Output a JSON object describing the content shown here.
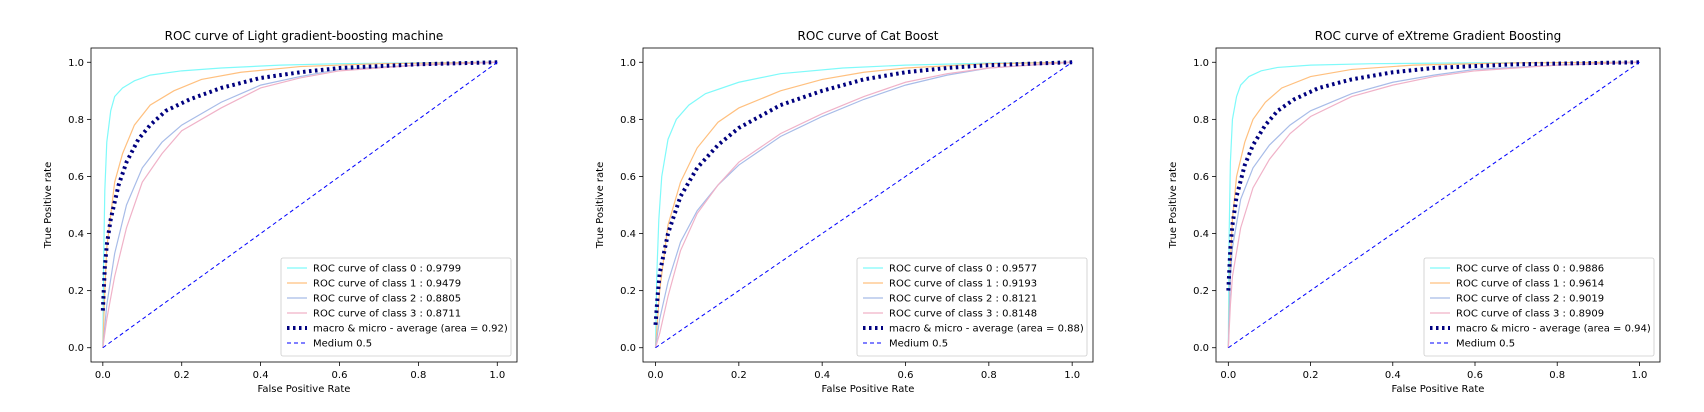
{
  "figure": {
    "background": "#ffffff"
  },
  "chart_data": [
    {
      "type": "line",
      "title": "ROC curve of Light gradient-boosting machine",
      "xlabel": "False Positive Rate",
      "ylabel": "True Positive rate",
      "xlim": [
        -0.03,
        1.05
      ],
      "ylim": [
        -0.05,
        1.05
      ],
      "xticks": [
        "0.0",
        "0.2",
        "0.4",
        "0.6",
        "0.8",
        "1.0"
      ],
      "yticks": [
        "0.0",
        "0.2",
        "0.4",
        "0.6",
        "0.8",
        "1.0"
      ],
      "legend_position": "lower-right",
      "grid": false,
      "series": [
        {
          "name": "ROC curve of class 0 : 0.9799",
          "color": "#7ffafa",
          "style": "solid",
          "points": [
            [
              0,
              0
            ],
            [
              0.002,
              0.3
            ],
            [
              0.005,
              0.55
            ],
            [
              0.01,
              0.72
            ],
            [
              0.02,
              0.83
            ],
            [
              0.03,
              0.88
            ],
            [
              0.05,
              0.91
            ],
            [
              0.08,
              0.935
            ],
            [
              0.12,
              0.955
            ],
            [
              0.2,
              0.97
            ],
            [
              0.3,
              0.98
            ],
            [
              0.45,
              0.99
            ],
            [
              0.6,
              0.995
            ],
            [
              0.8,
              0.998
            ],
            [
              1,
              1
            ]
          ]
        },
        {
          "name": "ROC curve of class 1 : 0.9479",
          "color": "#ffc07f",
          "style": "solid",
          "points": [
            [
              0,
              0
            ],
            [
              0.005,
              0.2
            ],
            [
              0.01,
              0.35
            ],
            [
              0.03,
              0.58
            ],
            [
              0.05,
              0.68
            ],
            [
              0.08,
              0.78
            ],
            [
              0.12,
              0.85
            ],
            [
              0.18,
              0.9
            ],
            [
              0.25,
              0.94
            ],
            [
              0.35,
              0.965
            ],
            [
              0.5,
              0.985
            ],
            [
              0.7,
              0.995
            ],
            [
              1,
              1
            ]
          ]
        },
        {
          "name": "ROC curve of class 2 : 0.8805",
          "color": "#a8bce8",
          "style": "solid",
          "points": [
            [
              0,
              0
            ],
            [
              0.01,
              0.15
            ],
            [
              0.03,
              0.33
            ],
            [
              0.06,
              0.5
            ],
            [
              0.1,
              0.63
            ],
            [
              0.15,
              0.72
            ],
            [
              0.2,
              0.78
            ],
            [
              0.3,
              0.86
            ],
            [
              0.4,
              0.92
            ],
            [
              0.5,
              0.95
            ],
            [
              0.6,
              0.975
            ],
            [
              0.8,
              0.99
            ],
            [
              1,
              1
            ]
          ]
        },
        {
          "name": "ROC curve of class 3 : 0.8711",
          "color": "#f0b2c8",
          "style": "solid",
          "points": [
            [
              0,
              0
            ],
            [
              0.01,
              0.1
            ],
            [
              0.03,
              0.25
            ],
            [
              0.06,
              0.42
            ],
            [
              0.1,
              0.58
            ],
            [
              0.15,
              0.68
            ],
            [
              0.2,
              0.76
            ],
            [
              0.3,
              0.84
            ],
            [
              0.4,
              0.91
            ],
            [
              0.5,
              0.945
            ],
            [
              0.6,
              0.97
            ],
            [
              0.8,
              0.99
            ],
            [
              1,
              1
            ]
          ]
        },
        {
          "name": "macro & micro - average (area = 0.92)",
          "color": "#00007f",
          "style": "dotted",
          "points": [
            [
              0,
              0.13
            ],
            [
              0.005,
              0.28
            ],
            [
              0.01,
              0.36
            ],
            [
              0.02,
              0.45
            ],
            [
              0.04,
              0.57
            ],
            [
              0.06,
              0.65
            ],
            [
              0.09,
              0.73
            ],
            [
              0.12,
              0.78
            ],
            [
              0.16,
              0.83
            ],
            [
              0.22,
              0.87
            ],
            [
              0.3,
              0.91
            ],
            [
              0.4,
              0.945
            ],
            [
              0.5,
              0.965
            ],
            [
              0.6,
              0.98
            ],
            [
              0.8,
              0.993
            ],
            [
              1,
              1
            ]
          ]
        },
        {
          "name": "Medium 0.5",
          "color": "#0000ff",
          "style": "dashed",
          "points": [
            [
              0,
              0
            ],
            [
              1,
              1
            ]
          ]
        }
      ]
    },
    {
      "type": "line",
      "title": "ROC curve of Cat Boost",
      "xlabel": "False Positive Rate",
      "ylabel": "True Positive rate",
      "xlim": [
        -0.03,
        1.05
      ],
      "ylim": [
        -0.05,
        1.05
      ],
      "xticks": [
        "0.0",
        "0.2",
        "0.4",
        "0.6",
        "0.8",
        "1.0"
      ],
      "yticks": [
        "0.0",
        "0.2",
        "0.4",
        "0.6",
        "0.8",
        "1.0"
      ],
      "legend_position": "lower-right",
      "grid": false,
      "series": [
        {
          "name": "ROC curve of class 0 : 0.9577",
          "color": "#7ffafa",
          "style": "solid",
          "points": [
            [
              0,
              0
            ],
            [
              0.003,
              0.25
            ],
            [
              0.008,
              0.45
            ],
            [
              0.015,
              0.6
            ],
            [
              0.03,
              0.73
            ],
            [
              0.05,
              0.8
            ],
            [
              0.08,
              0.85
            ],
            [
              0.12,
              0.89
            ],
            [
              0.2,
              0.93
            ],
            [
              0.3,
              0.96
            ],
            [
              0.45,
              0.98
            ],
            [
              0.6,
              0.99
            ],
            [
              0.8,
              0.997
            ],
            [
              1,
              1
            ]
          ]
        },
        {
          "name": "ROC curve of class 1 : 0.9193",
          "color": "#ffc07f",
          "style": "solid",
          "points": [
            [
              0,
              0
            ],
            [
              0.01,
              0.2
            ],
            [
              0.03,
              0.43
            ],
            [
              0.06,
              0.58
            ],
            [
              0.1,
              0.7
            ],
            [
              0.15,
              0.79
            ],
            [
              0.2,
              0.84
            ],
            [
              0.3,
              0.9
            ],
            [
              0.4,
              0.94
            ],
            [
              0.5,
              0.965
            ],
            [
              0.6,
              0.98
            ],
            [
              0.8,
              0.995
            ],
            [
              1,
              1
            ]
          ]
        },
        {
          "name": "ROC curve of class 2 : 0.8121",
          "color": "#a8bce8",
          "style": "solid",
          "points": [
            [
              0,
              0
            ],
            [
              0.01,
              0.1
            ],
            [
              0.03,
              0.23
            ],
            [
              0.06,
              0.37
            ],
            [
              0.1,
              0.48
            ],
            [
              0.15,
              0.57
            ],
            [
              0.2,
              0.64
            ],
            [
              0.3,
              0.74
            ],
            [
              0.4,
              0.81
            ],
            [
              0.5,
              0.87
            ],
            [
              0.6,
              0.92
            ],
            [
              0.7,
              0.955
            ],
            [
              0.8,
              0.98
            ],
            [
              1,
              1
            ]
          ]
        },
        {
          "name": "ROC curve of class 3 : 0.8148",
          "color": "#f0b2c8",
          "style": "solid",
          "points": [
            [
              0,
              0
            ],
            [
              0.01,
              0.05
            ],
            [
              0.03,
              0.18
            ],
            [
              0.06,
              0.34
            ],
            [
              0.1,
              0.47
            ],
            [
              0.15,
              0.57
            ],
            [
              0.2,
              0.65
            ],
            [
              0.3,
              0.75
            ],
            [
              0.4,
              0.82
            ],
            [
              0.5,
              0.88
            ],
            [
              0.6,
              0.93
            ],
            [
              0.7,
              0.96
            ],
            [
              0.8,
              0.98
            ],
            [
              1,
              1
            ]
          ]
        },
        {
          "name": "macro & micro - average (area = 0.88)",
          "color": "#00007f",
          "style": "dotted",
          "points": [
            [
              0,
              0.08
            ],
            [
              0.005,
              0.18
            ],
            [
              0.01,
              0.26
            ],
            [
              0.03,
              0.4
            ],
            [
              0.06,
              0.53
            ],
            [
              0.1,
              0.63
            ],
            [
              0.15,
              0.71
            ],
            [
              0.2,
              0.77
            ],
            [
              0.3,
              0.85
            ],
            [
              0.4,
              0.9
            ],
            [
              0.5,
              0.94
            ],
            [
              0.6,
              0.965
            ],
            [
              0.7,
              0.98
            ],
            [
              0.8,
              0.99
            ],
            [
              1,
              1
            ]
          ]
        },
        {
          "name": "Medium 0.5",
          "color": "#0000ff",
          "style": "dashed",
          "points": [
            [
              0,
              0
            ],
            [
              1,
              1
            ]
          ]
        }
      ]
    },
    {
      "type": "line",
      "title": "ROC curve of eXtreme Gradient Boosting",
      "xlabel": "False Positive Rate",
      "ylabel": "True Positive rate",
      "xlim": [
        -0.03,
        1.05
      ],
      "ylim": [
        -0.05,
        1.05
      ],
      "xticks": [
        "0.0",
        "0.2",
        "0.4",
        "0.6",
        "0.8",
        "1.0"
      ],
      "yticks": [
        "0.0",
        "0.2",
        "0.4",
        "0.6",
        "0.8",
        "1.0"
      ],
      "legend_position": "lower-right",
      "grid": false,
      "series": [
        {
          "name": "ROC curve of class 0 : 0.9886",
          "color": "#7ffafa",
          "style": "solid",
          "points": [
            [
              0,
              0
            ],
            [
              0.002,
              0.4
            ],
            [
              0.005,
              0.65
            ],
            [
              0.01,
              0.8
            ],
            [
              0.02,
              0.88
            ],
            [
              0.03,
              0.92
            ],
            [
              0.05,
              0.95
            ],
            [
              0.08,
              0.97
            ],
            [
              0.12,
              0.982
            ],
            [
              0.2,
              0.99
            ],
            [
              0.35,
              0.995
            ],
            [
              0.6,
              0.998
            ],
            [
              1,
              1
            ]
          ]
        },
        {
          "name": "ROC curve of class 1 : 0.9614",
          "color": "#ffc07f",
          "style": "solid",
          "points": [
            [
              0,
              0
            ],
            [
              0.005,
              0.3
            ],
            [
              0.01,
              0.45
            ],
            [
              0.02,
              0.6
            ],
            [
              0.04,
              0.72
            ],
            [
              0.06,
              0.8
            ],
            [
              0.09,
              0.86
            ],
            [
              0.13,
              0.91
            ],
            [
              0.2,
              0.95
            ],
            [
              0.3,
              0.975
            ],
            [
              0.45,
              0.99
            ],
            [
              0.7,
              0.998
            ],
            [
              1,
              1
            ]
          ]
        },
        {
          "name": "ROC curve of class 2 : 0.9019",
          "color": "#a8bce8",
          "style": "solid",
          "points": [
            [
              0,
              0
            ],
            [
              0.005,
              0.25
            ],
            [
              0.01,
              0.35
            ],
            [
              0.03,
              0.52
            ],
            [
              0.06,
              0.63
            ],
            [
              0.1,
              0.71
            ],
            [
              0.15,
              0.78
            ],
            [
              0.2,
              0.83
            ],
            [
              0.3,
              0.89
            ],
            [
              0.4,
              0.93
            ],
            [
              0.5,
              0.955
            ],
            [
              0.6,
              0.975
            ],
            [
              0.8,
              0.99
            ],
            [
              1,
              1
            ]
          ]
        },
        {
          "name": "ROC curve of class 3 : 0.8909",
          "color": "#f0b2c8",
          "style": "solid",
          "points": [
            [
              0,
              0
            ],
            [
              0.005,
              0.15
            ],
            [
              0.01,
              0.25
            ],
            [
              0.03,
              0.42
            ],
            [
              0.06,
              0.56
            ],
            [
              0.1,
              0.66
            ],
            [
              0.15,
              0.75
            ],
            [
              0.2,
              0.81
            ],
            [
              0.3,
              0.88
            ],
            [
              0.4,
              0.92
            ],
            [
              0.5,
              0.95
            ],
            [
              0.6,
              0.97
            ],
            [
              0.8,
              0.99
            ],
            [
              1,
              1
            ]
          ]
        },
        {
          "name": "macro & micro - average (area = 0.94)",
          "color": "#00007f",
          "style": "dotted",
          "points": [
            [
              0,
              0.2
            ],
            [
              0.005,
              0.35
            ],
            [
              0.01,
              0.43
            ],
            [
              0.02,
              0.53
            ],
            [
              0.04,
              0.64
            ],
            [
              0.06,
              0.71
            ],
            [
              0.09,
              0.78
            ],
            [
              0.12,
              0.83
            ],
            [
              0.16,
              0.87
            ],
            [
              0.22,
              0.91
            ],
            [
              0.3,
              0.94
            ],
            [
              0.4,
              0.965
            ],
            [
              0.5,
              0.98
            ],
            [
              0.7,
              0.993
            ],
            [
              1,
              1
            ]
          ]
        },
        {
          "name": "Medium 0.5",
          "color": "#0000ff",
          "style": "dashed",
          "points": [
            [
              0,
              0
            ],
            [
              1,
              1
            ]
          ]
        }
      ]
    }
  ]
}
